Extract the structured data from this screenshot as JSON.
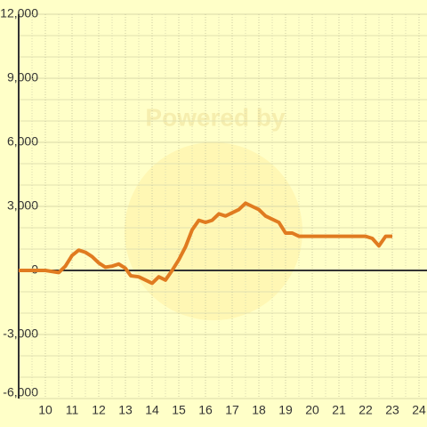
{
  "chart_data": {
    "type": "line",
    "watermark": "Powered by",
    "x": [
      9,
      10,
      10.5,
      10.75,
      11,
      11.25,
      11.5,
      11.75,
      12,
      12.25,
      12.5,
      12.75,
      13,
      13.2,
      13.5,
      13.75,
      14,
      14.25,
      14.5,
      14.75,
      15,
      15.25,
      15.5,
      15.75,
      16,
      16.25,
      16.5,
      16.75,
      17,
      17.25,
      17.5,
      17.75,
      18,
      18.25,
      18.5,
      18.75,
      19,
      19.25,
      19.5,
      20,
      21,
      22,
      22.25,
      22.5,
      22.75,
      23
    ],
    "series": [
      {
        "color": "#e07b20",
        "values": [
          0,
          0,
          -100,
          200,
          700,
          950,
          850,
          650,
          350,
          150,
          200,
          300,
          100,
          -250,
          -300,
          -450,
          -600,
          -300,
          -450,
          0,
          500,
          1100,
          1900,
          2350,
          2250,
          2350,
          2650,
          2550,
          2700,
          2850,
          3150,
          3000,
          2850,
          2550,
          2400,
          2250,
          1750,
          1750,
          1600,
          1600,
          1600,
          1600,
          1500,
          1150,
          1600,
          1600
        ]
      }
    ],
    "xlim": [
      9,
      24.3
    ],
    "xticks": [
      10,
      11,
      12,
      13,
      14,
      15,
      16,
      17,
      18,
      19,
      20,
      21,
      22,
      23,
      24
    ],
    "ylim": [
      -6000,
      12000
    ],
    "yticks": [
      {
        "value": -6000,
        "label": "-6,000"
      },
      {
        "value": -3000,
        "label": "-3,000"
      },
      0,
      {
        "value": 3000,
        "label": "3,000"
      },
      {
        "value": 6000,
        "label": "6,000"
      },
      {
        "value": 9000,
        "label": "9,000"
      },
      {
        "value": 12000,
        "label": "12,000"
      }
    ],
    "grid": true
  }
}
